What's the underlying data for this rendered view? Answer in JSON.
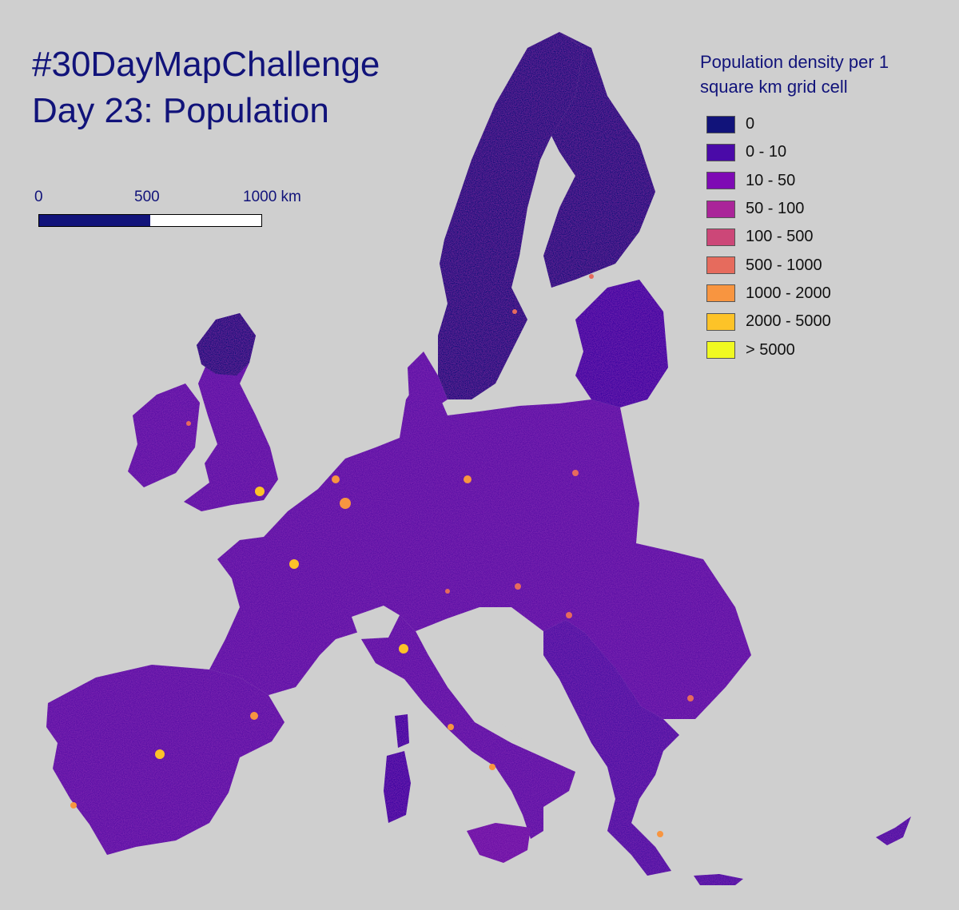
{
  "title": {
    "line1": "#30DayMapChallenge",
    "line2": "Day 23: Population"
  },
  "scalebar": {
    "labels": [
      "0",
      "500",
      "1000 km"
    ],
    "colors": [
      "#11137a",
      "#ffffff"
    ]
  },
  "legend": {
    "title_line1": "Population density per 1",
    "title_line2": "square km grid cell",
    "items": [
      {
        "label": "0",
        "color": "#11137a"
      },
      {
        "label": "0 - 10",
        "color": "#4a0aa8"
      },
      {
        "label": "10 - 50",
        "color": "#7e0bb4"
      },
      {
        "label": "50 - 100",
        "color": "#aa2599"
      },
      {
        "label": "100 - 500",
        "color": "#cc4778"
      },
      {
        "label": "500 - 1000",
        "color": "#e66b5d"
      },
      {
        "label": "1000 - 2000",
        "color": "#f89540"
      },
      {
        "label": "2000 - 5000",
        "color": "#fdc328"
      },
      {
        "label": "> 5000",
        "color": "#f0f921"
      }
    ]
  },
  "map": {
    "background_color": "#cfcfcf",
    "land_base_color": "#5a16a5",
    "sparse_color": "#11137a"
  }
}
